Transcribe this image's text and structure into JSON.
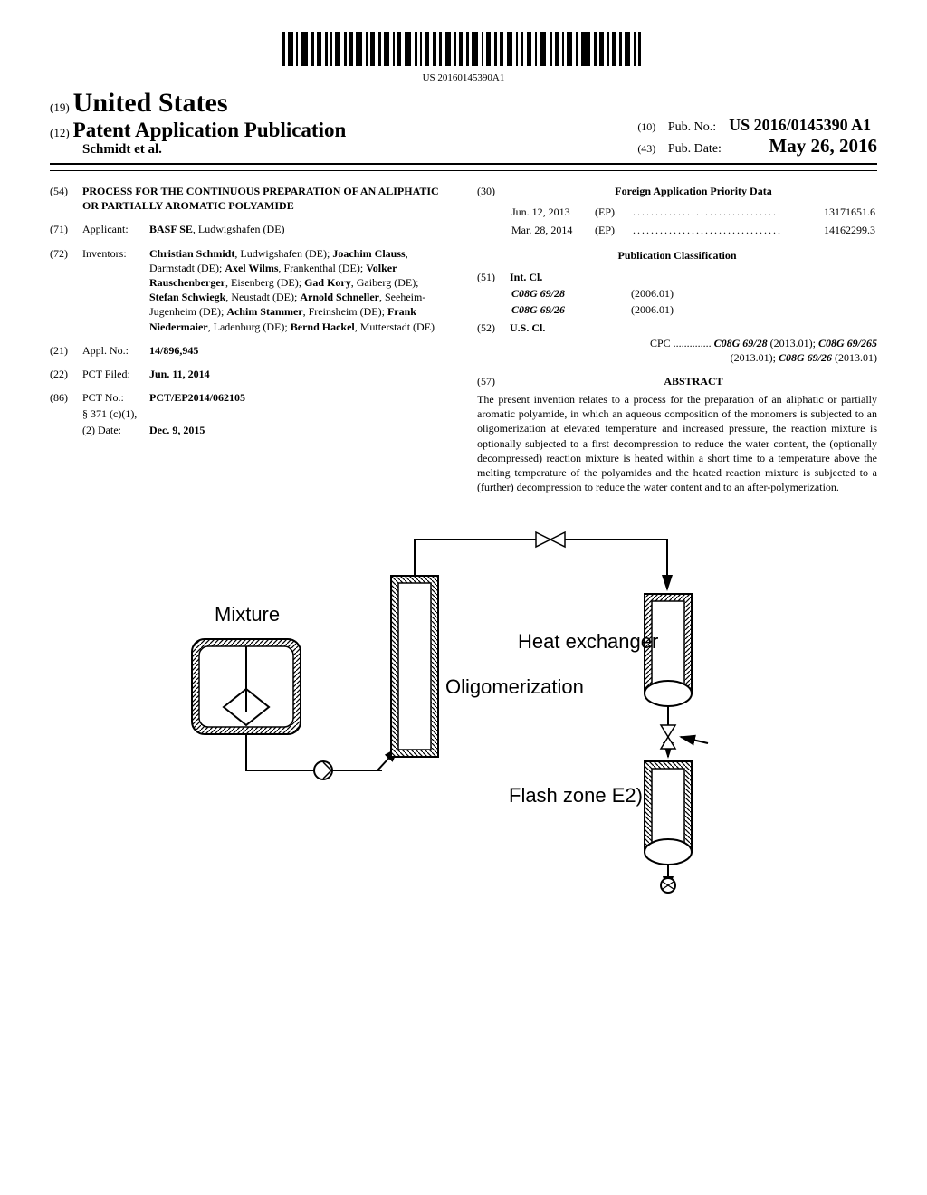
{
  "barcode": {
    "number": "US 20160145390A1"
  },
  "header": {
    "country_prefix": "(19)",
    "country": "United States",
    "doc_type_prefix": "(12)",
    "doc_type": "Patent Application Publication",
    "authors": "Schmidt et al.",
    "pub_no_prefix": "(10)",
    "pub_no_label": "Pub. No.:",
    "pub_no": "US 2016/0145390 A1",
    "pub_date_prefix": "(43)",
    "pub_date_label": "Pub. Date:",
    "pub_date": "May 26, 2016"
  },
  "title": {
    "num": "(54)",
    "text": "PROCESS FOR THE CONTINUOUS PREPARATION OF AN ALIPHATIC OR PARTIALLY AROMATIC POLYAMIDE"
  },
  "applicant": {
    "num": "(71)",
    "label": "Applicant:",
    "value": "BASF SE",
    "loc": ", Ludwigshafen (DE)"
  },
  "inventors": {
    "num": "(72)",
    "label": "Inventors:",
    "list": [
      {
        "name": "Christian Schmidt",
        "loc": ", Ludwigshafen (DE); "
      },
      {
        "name": "Joachim Clauss",
        "loc": ", Darmstadt (DE); "
      },
      {
        "name": "Axel Wilms",
        "loc": ", Frankenthal (DE); "
      },
      {
        "name": "Volker Rauschenberger",
        "loc": ", Eisenberg (DE); "
      },
      {
        "name": "Gad Kory",
        "loc": ", Gaiberg (DE); "
      },
      {
        "name": "Stefan Schwiegk",
        "loc": ", Neustadt (DE); "
      },
      {
        "name": "Arnold Schneller",
        "loc": ", Seeheim-Jugenheim (DE); "
      },
      {
        "name": "Achim Stammer",
        "loc": ", Freinsheim (DE); "
      },
      {
        "name": "Frank Niedermaier",
        "loc": ", Ladenburg (DE); "
      },
      {
        "name": "Bernd Hackel",
        "loc": ", Mutterstadt (DE)"
      }
    ]
  },
  "appl": {
    "num": "(21)",
    "label": "Appl. No.:",
    "value": "14/896,945"
  },
  "pct_filed": {
    "num": "(22)",
    "label": "PCT Filed:",
    "value": "Jun. 11, 2014"
  },
  "pct_no": {
    "num": "(86)",
    "label": "PCT No.:",
    "value": "PCT/EP2014/062105",
    "sub1_label": "§ 371 (c)(1),",
    "sub2_label": "(2) Date:",
    "sub2_value": "Dec. 9, 2015"
  },
  "foreign": {
    "num": "(30)",
    "title": "Foreign Application Priority Data",
    "rows": [
      {
        "date": "Jun. 12, 2013",
        "code": "(EP)",
        "dots": ".................................",
        "app": "13171651.6"
      },
      {
        "date": "Mar. 28, 2014",
        "code": "(EP)",
        "dots": ".................................",
        "app": "14162299.3"
      }
    ]
  },
  "pub_class": {
    "title": "Publication Classification",
    "int_cl": {
      "num": "(51)",
      "label": "Int. Cl.",
      "rows": [
        {
          "code": "C08G 69/28",
          "year": "(2006.01)"
        },
        {
          "code": "C08G 69/26",
          "year": "(2006.01)"
        }
      ]
    },
    "us_cl": {
      "num": "(52)",
      "label": "U.S. Cl.",
      "cpc_label": "CPC",
      "dots": "..............",
      "line1a": "C08G 69/28",
      "line1b": " (2013.01); ",
      "line1c": "C08G 69/265",
      "line2a": "(2013.01); ",
      "line2b": "C08G 69/26",
      "line2c": " (2013.01)"
    }
  },
  "abstract": {
    "num": "(57)",
    "title": "ABSTRACT",
    "text": "The present invention relates to a process for the preparation of an aliphatic or partially aromatic polyamide, in which an aqueous composition of the monomers is subjected to an oligomerization at elevated temperature and increased pressure, the reaction mixture is optionally subjected to a first decompression to reduce the water content, the (optionally decompressed) reaction mixture is heated within a short time to a temperature above the melting temperature of the polyamides and the heated reaction mixture is subjected to a (further) decompression to reduce the water content and to an after-polymerization."
  },
  "diagram": {
    "labels": {
      "mixture": "Mixture",
      "oligomerization": "Oligomerization",
      "heat_exchanger": "Heat exchanger",
      "flash_zone": "Flash zone E2)"
    },
    "style": {
      "hatch_width": 2.5,
      "hatch_gap": 5,
      "hatch_color": "#000000",
      "stroke_color": "#000000",
      "fill_color": "#ffffff",
      "label_fontsize": 22,
      "label_fontfamily": "Arial",
      "label_color": "#000000"
    }
  }
}
